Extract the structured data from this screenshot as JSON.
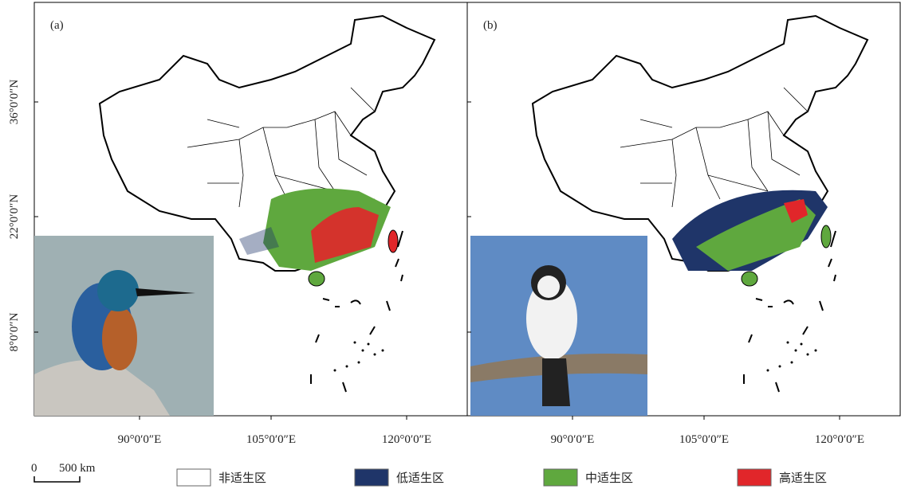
{
  "panels": [
    {
      "label": "(a)"
    },
    {
      "label": "(b)"
    }
  ],
  "lat_labels": [
    "36°0′0″N",
    "22°0′0″N",
    "8°0′0″N"
  ],
  "lon_labels": [
    "90°0′0″E",
    "105°0′0″E",
    "120°0′0″E"
  ],
  "scale_bar": {
    "zero": "0",
    "length": "500 km"
  },
  "legend": [
    {
      "label": "非适生区",
      "color": "#ffffff"
    },
    {
      "label": "低适生区",
      "color": "#1f3569"
    },
    {
      "label": "中适生区",
      "color": "#5fa83e"
    },
    {
      "label": "高适生区",
      "color": "#e1262a"
    }
  ]
}
